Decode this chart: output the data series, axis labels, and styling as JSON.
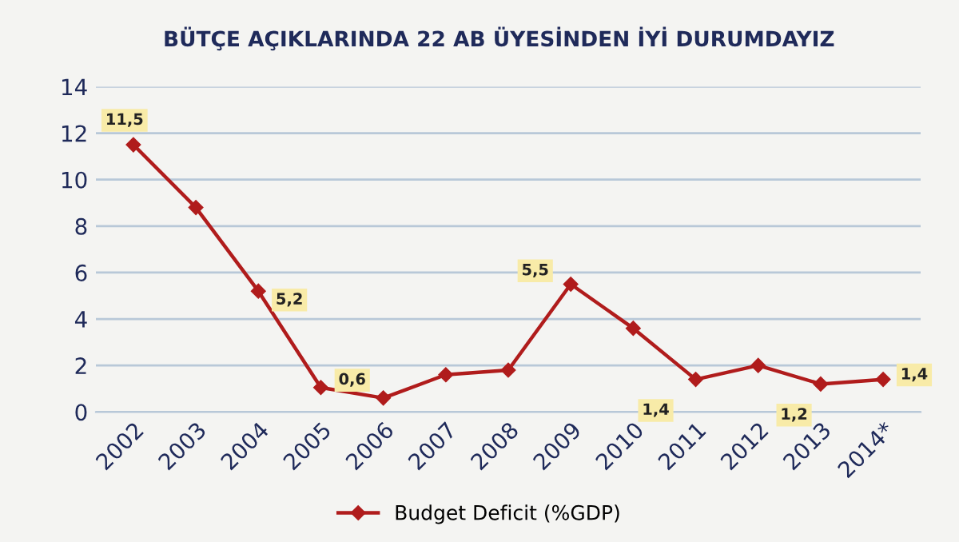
{
  "chart_data": {
    "type": "line",
    "title": "BÜTÇE AÇIKLARINDA 22 AB ÜYESİNDEN İYİ DURUMDAYIZ",
    "categories": [
      "2002",
      "2003",
      "2004",
      "2005",
      "2006",
      "2007",
      "2008",
      "2009",
      "2010",
      "2011",
      "2012",
      "2013",
      "2014*"
    ],
    "series": [
      {
        "name": "Budget Deficit (%GDP)",
        "color": "#b01c1c",
        "values": [
          11.5,
          8.8,
          5.2,
          1.05,
          0.6,
          1.6,
          1.8,
          5.5,
          3.6,
          1.4,
          2.0,
          1.2,
          1.4
        ],
        "value_labels": [
          "11,5",
          null,
          "5,2",
          null,
          "0,6",
          null,
          null,
          "5,5",
          null,
          "1,4",
          null,
          "1,2",
          "1,4"
        ]
      }
    ],
    "ylim": [
      0,
      14
    ],
    "yticks": [
      0,
      2,
      4,
      6,
      8,
      10,
      12,
      14
    ],
    "grid": "y",
    "legend": "bottom",
    "marker": "diamond",
    "line_style": "solid"
  }
}
